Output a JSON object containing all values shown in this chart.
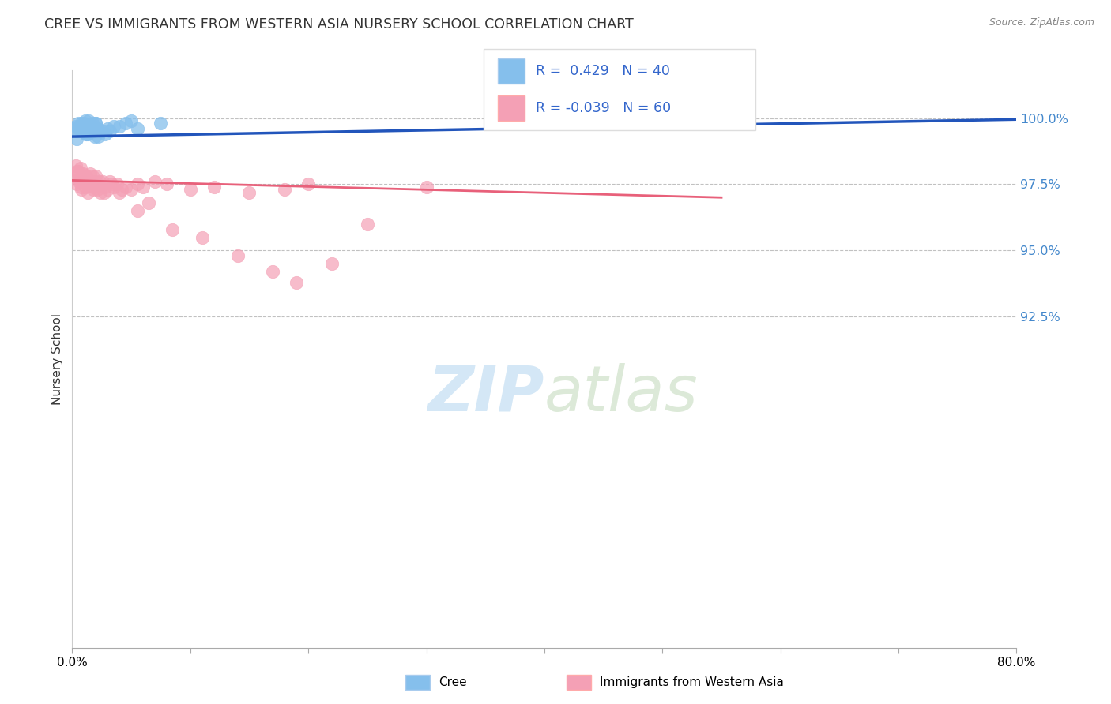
{
  "title": "CREE VS IMMIGRANTS FROM WESTERN ASIA NURSERY SCHOOL CORRELATION CHART",
  "source": "Source: ZipAtlas.com",
  "ylabel": "Nursery School",
  "x_min": 0.0,
  "x_max": 80.0,
  "y_min": 80.0,
  "y_max": 101.8,
  "x_ticks": [
    0.0,
    10.0,
    20.0,
    30.0,
    40.0,
    50.0,
    60.0,
    70.0,
    80.0
  ],
  "x_tick_labels": [
    "0.0%",
    "",
    "",
    "",
    "",
    "",
    "",
    "",
    "80.0%"
  ],
  "y_ticks": [
    92.5,
    95.0,
    97.5,
    100.0
  ],
  "y_tick_labels": [
    "92.5%",
    "95.0%",
    "97.5%",
    "100.0%"
  ],
  "legend_labels": [
    "Cree",
    "Immigrants from Western Asia"
  ],
  "cree_R": 0.429,
  "cree_N": 40,
  "immigrants_R": -0.039,
  "immigrants_N": 60,
  "cree_color": "#85BFEC",
  "immigrants_color": "#F4A0B5",
  "cree_line_color": "#2255BB",
  "immigrants_line_color": "#E8607A",
  "background_color": "#FFFFFF",
  "cree_x": [
    0.3,
    0.5,
    0.7,
    0.9,
    1.1,
    1.3,
    1.5,
    1.7,
    1.9,
    2.1,
    0.4,
    0.6,
    0.8,
    1.0,
    1.2,
    1.4,
    1.6,
    1.8,
    2.0,
    2.2,
    0.35,
    0.55,
    0.75,
    0.95,
    1.15,
    1.35,
    1.55,
    1.75,
    1.95,
    2.15,
    2.5,
    3.0,
    3.5,
    4.5,
    2.8,
    3.2,
    4.0,
    5.0,
    5.5,
    7.5
  ],
  "cree_y": [
    99.7,
    99.8,
    99.6,
    99.5,
    99.9,
    99.4,
    99.7,
    99.8,
    99.3,
    99.6,
    99.5,
    99.7,
    99.8,
    99.6,
    99.4,
    99.9,
    99.5,
    99.7,
    99.8,
    99.6,
    99.2,
    99.6,
    99.5,
    99.8,
    99.4,
    99.7,
    99.6,
    99.5,
    99.8,
    99.3,
    99.5,
    99.6,
    99.7,
    99.8,
    99.4,
    99.5,
    99.7,
    99.9,
    99.6,
    99.8
  ],
  "immigrants_x": [
    0.2,
    0.3,
    0.4,
    0.5,
    0.6,
    0.7,
    0.8,
    0.9,
    1.0,
    1.1,
    1.2,
    1.3,
    1.4,
    1.5,
    1.6,
    1.7,
    1.8,
    1.9,
    2.0,
    2.1,
    2.2,
    2.4,
    2.6,
    2.8,
    3.0,
    3.2,
    3.5,
    3.8,
    4.0,
    4.5,
    5.0,
    5.5,
    6.0,
    7.0,
    8.0,
    10.0,
    12.0,
    15.0,
    18.0,
    20.0,
    0.35,
    0.55,
    0.75,
    0.95,
    1.25,
    1.75,
    2.3,
    2.7,
    3.3,
    4.2,
    5.5,
    6.5,
    8.5,
    11.0,
    14.0,
    17.0,
    19.0,
    25.0,
    22.0,
    30.0
  ],
  "immigrants_y": [
    97.8,
    98.2,
    97.5,
    98.0,
    97.6,
    98.1,
    97.3,
    97.9,
    97.7,
    97.4,
    97.8,
    97.2,
    97.6,
    97.9,
    97.5,
    97.8,
    97.4,
    97.6,
    97.8,
    97.3,
    97.5,
    97.2,
    97.6,
    97.4,
    97.3,
    97.6,
    97.4,
    97.5,
    97.2,
    97.4,
    97.3,
    97.5,
    97.4,
    97.6,
    97.5,
    97.3,
    97.4,
    97.2,
    97.3,
    97.5,
    98.0,
    97.7,
    97.4,
    97.8,
    97.5,
    97.3,
    97.6,
    97.2,
    97.5,
    97.3,
    96.5,
    96.8,
    95.8,
    95.5,
    94.8,
    94.2,
    93.8,
    96.0,
    94.5,
    97.4
  ],
  "imm_trend_x0": 0.0,
  "imm_trend_x1": 55.0,
  "imm_trend_y0": 97.65,
  "imm_trend_y1": 97.0,
  "cree_trend_x0": 0.0,
  "cree_trend_x1": 80.0,
  "cree_trend_y0": 99.3,
  "cree_trend_y1": 99.95
}
